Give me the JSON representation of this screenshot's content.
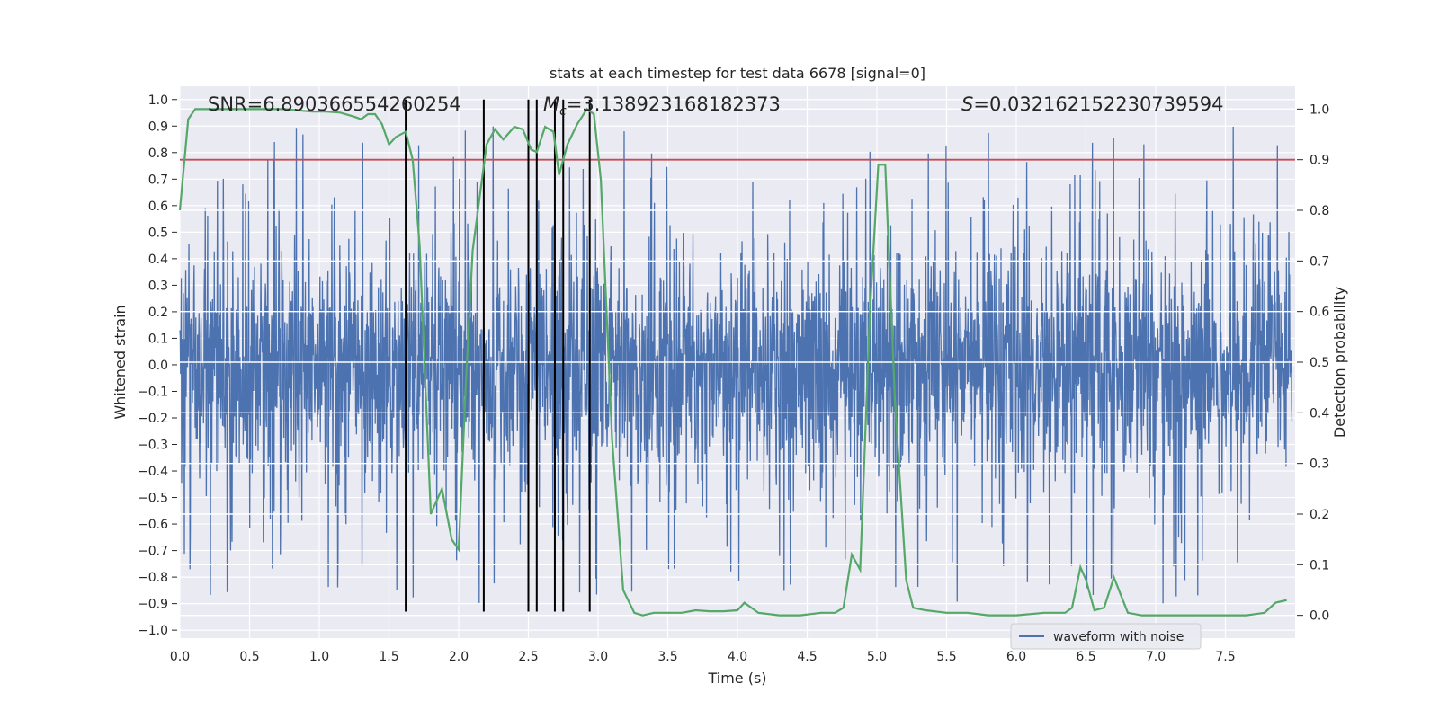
{
  "chart_data": {
    "type": "line",
    "title": "stats at each timestep for test data 6678 [signal=0]",
    "xlabel": "Time (s)",
    "ylabel": "Whitened strain",
    "y2label": "Detection probability",
    "xlim": [
      0.0,
      8.0
    ],
    "ylim": [
      -1.03,
      1.05
    ],
    "y2lim": [
      -0.045,
      1.045
    ],
    "grid": true,
    "x_ticks": [
      "0.0",
      "0.5",
      "1.0",
      "1.5",
      "2.0",
      "2.5",
      "3.0",
      "3.5",
      "4.0",
      "4.5",
      "5.0",
      "5.5",
      "6.0",
      "6.5",
      "7.0",
      "7.5"
    ],
    "y_ticks": [
      "1.0",
      "0.9",
      "0.8",
      "0.7",
      "0.6",
      "0.5",
      "0.4",
      "0.3",
      "0.2",
      "0.1",
      "0.0",
      "−0.1",
      "−0.2",
      "−0.3",
      "−0.4",
      "−0.5",
      "−0.6",
      "−0.7",
      "−0.8",
      "−0.9",
      "−1.0"
    ],
    "y2_ticks": [
      "1.0",
      "0.9",
      "0.8",
      "0.7",
      "0.6",
      "0.5",
      "0.4",
      "0.3",
      "0.2",
      "0.1",
      "0.0"
    ],
    "annotations": {
      "snr": "SNR=6.890366554260254",
      "mc_symbol": "M",
      "mc_sub": "c",
      "mc_value": "=3.138923168182373",
      "s_symbol": "S",
      "s_value": "=0.032162152230739594"
    },
    "legend": {
      "placement": "bottom-right",
      "entries": [
        "waveform with noise"
      ]
    },
    "threshold_y2": 0.9,
    "event_markers_x": [
      1.62,
      2.18,
      2.5,
      2.56,
      2.69,
      2.75,
      2.94
    ],
    "event_marker_range": [
      -0.93,
      1.0
    ],
    "probability": {
      "x": [
        0.0,
        0.06,
        0.11,
        0.2,
        0.35,
        0.55,
        0.75,
        0.95,
        1.05,
        1.15,
        1.25,
        1.3,
        1.35,
        1.4,
        1.45,
        1.5,
        1.55,
        1.62,
        1.67,
        1.72,
        1.8,
        1.88,
        1.95,
        2.0,
        2.05,
        2.1,
        2.2,
        2.26,
        2.32,
        2.4,
        2.46,
        2.52,
        2.56,
        2.62,
        2.68,
        2.72,
        2.78,
        2.85,
        2.92,
        2.97,
        3.02,
        3.1,
        3.18,
        3.26,
        3.32,
        3.4,
        3.5,
        3.6,
        3.7,
        3.8,
        3.9,
        4.0,
        4.05,
        4.15,
        4.3,
        4.45,
        4.6,
        4.7,
        4.76,
        4.82,
        4.88,
        4.95,
        5.01,
        5.06,
        5.13,
        5.21,
        5.26,
        5.35,
        5.5,
        5.65,
        5.8,
        6.0,
        6.2,
        6.35,
        6.4,
        6.46,
        6.5,
        6.56,
        6.63,
        6.7,
        6.8,
        6.9,
        7.1,
        7.4,
        7.65,
        7.78,
        7.86,
        7.94
      ],
      "y": [
        0.8,
        0.98,
        1.0,
        1.0,
        1.0,
        1.0,
        1.0,
        0.995,
        0.995,
        0.993,
        0.985,
        0.98,
        0.99,
        0.99,
        0.97,
        0.93,
        0.945,
        0.955,
        0.9,
        0.73,
        0.2,
        0.25,
        0.15,
        0.13,
        0.45,
        0.72,
        0.93,
        0.96,
        0.94,
        0.965,
        0.96,
        0.92,
        0.915,
        0.965,
        0.955,
        0.87,
        0.93,
        0.97,
        1.0,
        0.99,
        0.86,
        0.35,
        0.05,
        0.005,
        0.0,
        0.005,
        0.005,
        0.005,
        0.01,
        0.008,
        0.008,
        0.01,
        0.025,
        0.005,
        0.0,
        0.0,
        0.005,
        0.005,
        0.015,
        0.12,
        0.09,
        0.6,
        0.89,
        0.89,
        0.42,
        0.07,
        0.015,
        0.01,
        0.005,
        0.005,
        0.0,
        0.0,
        0.005,
        0.005,
        0.015,
        0.095,
        0.07,
        0.01,
        0.015,
        0.075,
        0.005,
        0.0,
        0.0,
        0.0,
        0.0,
        0.005,
        0.025,
        0.03
      ]
    },
    "series": [
      {
        "name": "waveform with noise",
        "role": "strain",
        "color": "#4c72b0"
      },
      {
        "role": "probability",
        "color": "#55a868"
      },
      {
        "role": "threshold",
        "color": "#c44e52"
      },
      {
        "role": "event-markers",
        "color": "#000000"
      }
    ],
    "colors": {
      "background": "#eaeaf2",
      "grid": "#ffffff",
      "strain": "#4c72b0",
      "probability": "#55a868",
      "threshold": "#c44e52",
      "marker": "#000000"
    }
  }
}
